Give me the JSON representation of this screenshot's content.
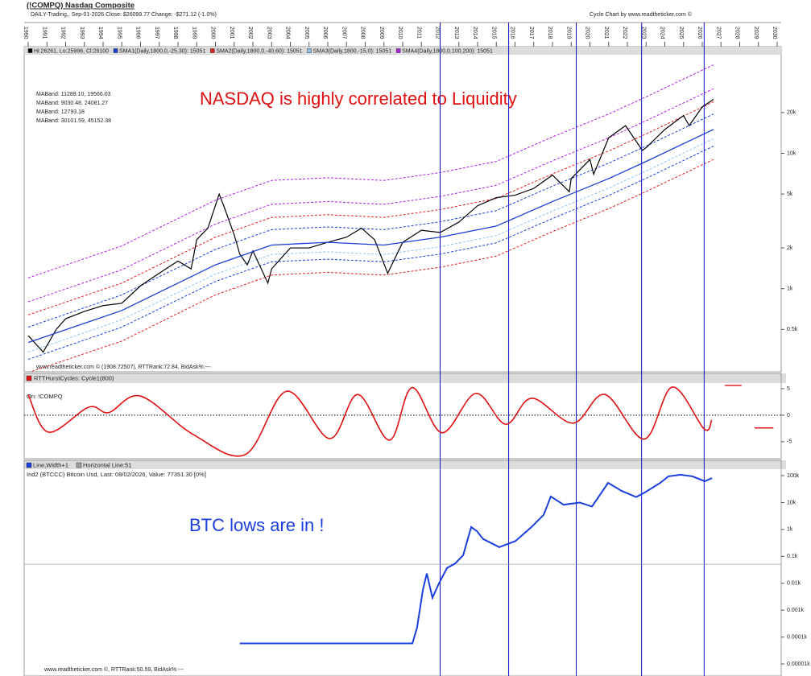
{
  "chart_data": [
    {
      "type": "line",
      "log": true,
      "title": "(!COMPQ) Nasdaq Composite",
      "subtitle": "DAILY-Trading,, Sep-01-2026 Close: $26099.77 Change: -$271.12 (-1.0%)",
      "credit": "Cycle Chart by www.readtheticker.com ©",
      "annotation": "NASDAQ is highly correlated to Liquidity",
      "footer": "www.readtheticker.com © (1908.72507), RTTRank:72.84, BidAsk%:---",
      "xlim": [
        1990,
        2030
      ],
      "xticks": [
        1990,
        1991,
        1992,
        1993,
        1994,
        1995,
        1996,
        1997,
        1998,
        1999,
        2000,
        2001,
        2002,
        2003,
        2004,
        2005,
        2006,
        2007,
        2008,
        2009,
        2010,
        2011,
        2012,
        2013,
        2014,
        2015,
        2016,
        2017,
        2018,
        2019,
        2020,
        2021,
        2022,
        2023,
        2024,
        2025,
        2026,
        2027,
        2028,
        2029,
        2030
      ],
      "ylim": [
        0.25,
        52
      ],
      "yticks": [
        {
          "value": 0.5,
          "label": "0.5k"
        },
        {
          "value": 1,
          "label": "1k"
        },
        {
          "value": 2,
          "label": "2k"
        },
        {
          "value": 5,
          "label": "5k"
        },
        {
          "value": 10,
          "label": "10k"
        },
        {
          "value": 20,
          "label": "20k"
        }
      ],
      "cycle_lines": [
        2012.0,
        2015.66,
        2019.27,
        2022.76,
        2026.1
      ],
      "band_x": [
        1990,
        1995,
        2000,
        2003,
        2006,
        2009,
        2012,
        2015,
        2018,
        2021,
        2023,
        2026.6
      ],
      "series": [
        {
          "name": "Hi:26261, Lo:25996, Cl:26100",
          "color": "#000000",
          "x": [
            1990,
            1990.8,
            1991.5,
            1992,
            1993,
            1994,
            1995,
            1996,
            1997,
            1998,
            1998.7,
            1999,
            1999.6,
            2000.2,
            2000.5,
            2001,
            2001.3,
            2001.7,
            2002,
            2002.8,
            2003,
            2004,
            2005,
            2006,
            2007,
            2007.8,
            2008.5,
            2009.2,
            2010,
            2011,
            2012,
            2013,
            2014,
            2015,
            2016,
            2017,
            2018,
            2018.9,
            2019,
            2020,
            2020.2,
            2021,
            2021.9,
            2022.8,
            2023,
            2024,
            2025,
            2025.3,
            2026,
            2026.6
          ],
          "values": [
            0.45,
            0.34,
            0.5,
            0.6,
            0.68,
            0.75,
            0.78,
            1.05,
            1.3,
            1.6,
            1.4,
            2.3,
            2.8,
            5.0,
            3.9,
            2.5,
            1.8,
            1.5,
            1.9,
            1.1,
            1.4,
            2.0,
            2.0,
            2.2,
            2.4,
            2.8,
            2.3,
            1.3,
            2.2,
            2.7,
            2.6,
            3.1,
            4.1,
            4.7,
            4.9,
            5.5,
            6.9,
            5.2,
            6.5,
            9.0,
            7.0,
            13,
            16,
            10.5,
            11,
            15,
            19,
            16,
            22,
            25
          ]
        },
        {
          "name": "SMA1(Daily,1800,0,-25,30): 15051",
          "color": "#1a3fd6",
          "band_label": "MABand: 11288.10, 19566.03",
          "values": [
            0.4,
            0.69,
            1.5,
            2.1,
            2.2,
            2.1,
            2.4,
            2.9,
            4.4,
            6.5,
            8.7,
            15
          ],
          "upper": [
            0.52,
            0.9,
            1.95,
            2.73,
            2.86,
            2.73,
            3.12,
            3.77,
            5.72,
            8.45,
            11.3,
            19.5
          ],
          "lower": [
            0.3,
            0.52,
            1.13,
            1.58,
            1.65,
            1.58,
            1.8,
            2.18,
            3.3,
            4.88,
            6.53,
            11.3
          ]
        },
        {
          "name": "SMA2(Daily,1800,0,-40,60): 15051",
          "color": "#e02020",
          "band_label": "MABand: 9030.48, 24081.27",
          "upper": [
            0.64,
            1.1,
            2.4,
            3.36,
            3.52,
            3.36,
            3.84,
            4.64,
            7.04,
            10.4,
            13.9,
            24
          ],
          "lower": [
            0.24,
            0.41,
            0.9,
            1.26,
            1.32,
            1.26,
            1.44,
            1.74,
            2.64,
            3.9,
            5.22,
            9
          ]
        },
        {
          "name": "SMA3(Daily,1800,-15,0): 15051",
          "color": "#8ec4f0",
          "band_label": "MABand: 12793.18",
          "lower": [
            0.34,
            0.59,
            1.28,
            1.79,
            1.87,
            1.79,
            2.04,
            2.47,
            3.74,
            5.53,
            7.4,
            12.8
          ]
        },
        {
          "name": "SMA4(Daily,1800,0,100,200): 15051",
          "color": "#b01ee0",
          "band_label": "MABand: 30101.59, 45152.38",
          "lower": [
            0.8,
            1.38,
            3,
            4.2,
            4.4,
            4.2,
            4.8,
            5.8,
            8.8,
            13,
            17.4,
            30
          ],
          "upper": [
            1.2,
            2.07,
            4.5,
            6.3,
            6.6,
            6.3,
            7.2,
            8.7,
            13.2,
            19.5,
            26.1,
            45
          ]
        }
      ]
    },
    {
      "type": "line",
      "title": "RTTHurstCycles: Cycle1(800)",
      "subtitle": "On: !COMPQ",
      "ylim": [
        -8.2,
        5.9
      ],
      "yticks": [
        5,
        0,
        -5
      ],
      "hline": 0,
      "series": [
        {
          "color": "#e01010",
          "x": [
            1990,
            1991.08,
            1993.23,
            1994.3,
            1996.0,
            1998.8,
            2001.6,
            2003.8,
            2006.1,
            2007.6,
            2009.3,
            2010.5,
            2012.1,
            2013.9,
            2015.5,
            2016.9,
            2019.1,
            2020.8,
            2022.9,
            2024.4,
            2026.1,
            2026.5
          ],
          "values": [
            3.9,
            -3.2,
            1.5,
            0.5,
            3.6,
            -3.6,
            -7.4,
            4.5,
            -4.4,
            3.9,
            -4.7,
            5.2,
            -3.3,
            4.1,
            -1.7,
            3.2,
            -1.5,
            3.9,
            -4.5,
            5.3,
            -2.6,
            -0.9
          ]
        }
      ],
      "projections": [
        {
          "x0": 2027.2,
          "x1": 2028.1,
          "value": 5.6
        },
        {
          "x0": 2028.8,
          "x1": 2029.8,
          "value": -2.4
        }
      ]
    },
    {
      "type": "line",
      "log": true,
      "subtitle": "Ind2 (BTCCC) Bitcoin Usd, Last: 08/02/2026,  Value: 77351.30 [0%]",
      "annotation": "BTC lows are in !",
      "footer": "www.readtheticker.com ©, RTTRank:50.59, BidAsk%:---",
      "ylim": [
        4.1e-06,
        174
      ],
      "yticks": [
        {
          "value": 100,
          "label": "100k"
        },
        {
          "value": 10,
          "label": "10k"
        },
        {
          "value": 1,
          "label": "1k"
        },
        {
          "value": 0.1,
          "label": "0.1k"
        },
        {
          "value": 0.01,
          "label": "0.01k"
        },
        {
          "value": 0.001,
          "label": "0.001k"
        },
        {
          "value": 0.0001,
          "label": "0.0001k"
        },
        {
          "value": 1e-05,
          "label": "0.00001k"
        }
      ],
      "hline": {
        "label": "Horizontal Line:51",
        "value": 0.051,
        "color": "#a0a0a0"
      },
      "series": [
        {
          "name": "Line,Width+1",
          "color": "#1a3fe0",
          "x": [
            2001.3,
            2010.52,
            2010.77,
            2011.08,
            2011.29,
            2011.59,
            2011.94,
            2012.37,
            2012.8,
            2013.23,
            2013.66,
            2013.96,
            2014.3,
            2015.16,
            2016.02,
            2016.88,
            2017.53,
            2017.91,
            2018.6,
            2019.46,
            2020.11,
            2020.97,
            2021.7,
            2022.47,
            2022.9,
            2023.76,
            2024.19,
            2024.84,
            2025.48,
            2026.13,
            2026.52
          ],
          "values": [
            5.8e-05,
            5.8e-05,
            0.00023,
            0.0057,
            0.023,
            0.0029,
            0.01,
            0.037,
            0.054,
            0.11,
            1.23,
            0.87,
            0.44,
            0.22,
            0.37,
            1.23,
            3.5,
            16.8,
            8.3,
            10,
            7.1,
            53.9,
            27,
            16,
            23,
            54,
            94,
            108,
            94,
            62,
            81
          ]
        }
      ]
    }
  ]
}
